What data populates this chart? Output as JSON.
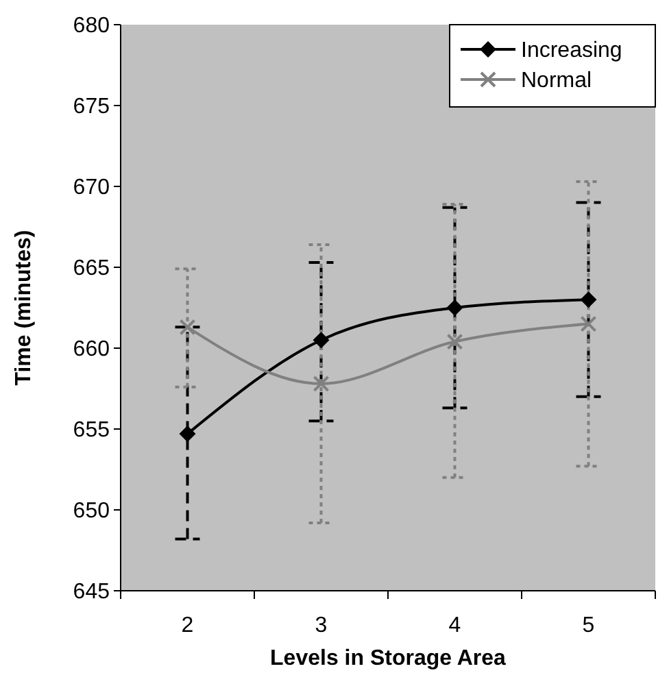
{
  "chart_data": {
    "type": "line",
    "xlabel": "Levels in Storage Area",
    "ylabel": "Time (minutes)",
    "categories": [
      "2",
      "3",
      "4",
      "5"
    ],
    "series": [
      {
        "name": "Increasing",
        "color": "#000000",
        "marker": "diamond",
        "values": [
          654.7,
          660.5,
          662.5,
          663.0
        ],
        "errors": [
          [
            648.2,
            661.3
          ],
          [
            655.5,
            665.3
          ],
          [
            656.3,
            668.7
          ],
          [
            657.0,
            669.0
          ]
        ]
      },
      {
        "name": "Normal",
        "color": "#808080",
        "marker": "cross",
        "values": [
          661.3,
          657.8,
          660.4,
          661.5
        ],
        "errors": [
          [
            657.6,
            664.9
          ],
          [
            649.2,
            666.4
          ],
          [
            652.0,
            668.9
          ],
          [
            652.7,
            670.3
          ]
        ]
      }
    ],
    "ylim": [
      645,
      680
    ],
    "yticks": [
      645,
      650,
      655,
      660,
      665,
      670,
      675,
      680
    ],
    "grid": false,
    "legend": "top right",
    "line_style": "solid"
  }
}
